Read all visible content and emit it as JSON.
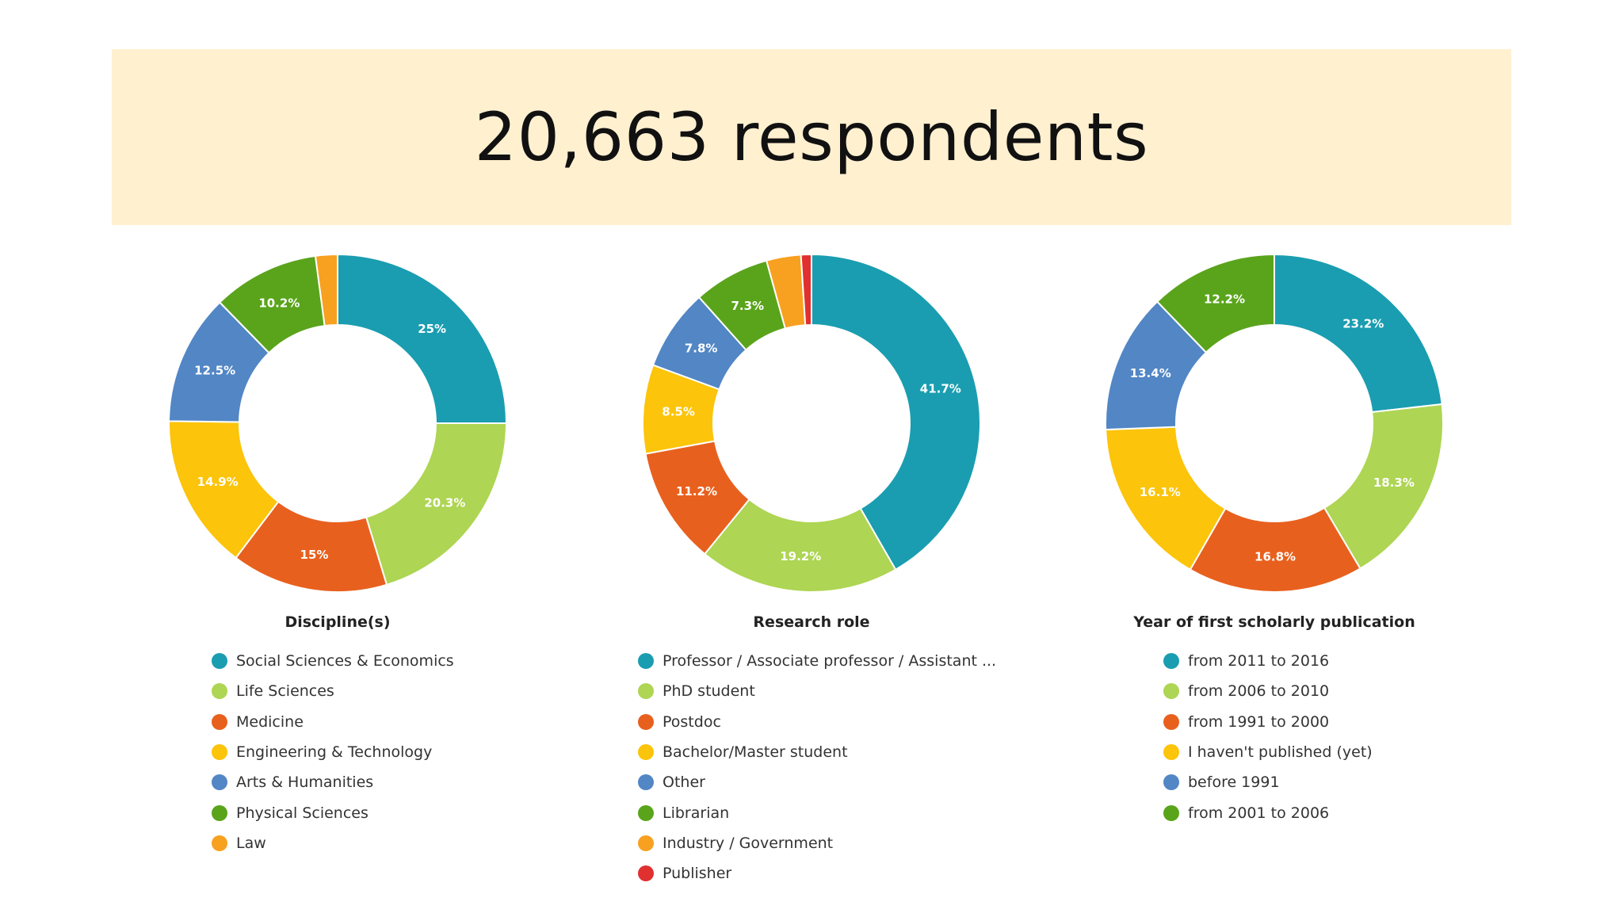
{
  "banner": {
    "title": "20,663 respondents"
  },
  "colors": {
    "banner_bg": "#fff0d0",
    "teal": "#1a9db0",
    "light_green": "#aed553",
    "orange_red": "#e8601e",
    "yellow": "#fcc40a",
    "blue": "#5286c5",
    "green": "#5aa41c",
    "orange": "#f8a020",
    "red": "#e03030"
  },
  "chart_data": [
    {
      "type": "pie",
      "title": "Discipline(s)",
      "donut": true,
      "slices": [
        {
          "label": "Social Sciences & Economics",
          "value": 25,
          "display": "25%",
          "color": "#1a9db0"
        },
        {
          "label": "Life Sciences",
          "value": 20.3,
          "display": "20.3%",
          "color": "#aed553"
        },
        {
          "label": "Medicine",
          "value": 15,
          "display": "15%",
          "color": "#e8601e"
        },
        {
          "label": "Engineering & Technology",
          "value": 14.9,
          "display": "14.9%",
          "color": "#fcc40a"
        },
        {
          "label": "Arts & Humanities",
          "value": 12.5,
          "display": "12.5%",
          "color": "#5286c5"
        },
        {
          "label": "Physical Sciences",
          "value": 10.2,
          "display": "10.2%",
          "color": "#5aa41c"
        },
        {
          "label": "Law",
          "value": 2.1,
          "display": "",
          "color": "#f8a020"
        }
      ]
    },
    {
      "type": "pie",
      "title": "Research role",
      "donut": true,
      "slices": [
        {
          "label": "Professor / Associate professor / Assistant ...",
          "value": 41.7,
          "display": "41.7%",
          "color": "#1a9db0"
        },
        {
          "label": "PhD student",
          "value": 19.2,
          "display": "19.2%",
          "color": "#aed553"
        },
        {
          "label": "Postdoc",
          "value": 11.2,
          "display": "11.2%",
          "color": "#e8601e"
        },
        {
          "label": "Bachelor/Master student",
          "value": 8.5,
          "display": "8.5%",
          "color": "#fcc40a"
        },
        {
          "label": "Other",
          "value": 7.8,
          "display": "7.8%",
          "color": "#5286c5"
        },
        {
          "label": "Librarian",
          "value": 7.3,
          "display": "7.3%",
          "color": "#5aa41c"
        },
        {
          "label": "Industry / Government",
          "value": 3.3,
          "display": "",
          "color": "#f8a020"
        },
        {
          "label": "Publisher",
          "value": 1.0,
          "display": "",
          "color": "#e03030"
        }
      ]
    },
    {
      "type": "pie",
      "title": "Year of first scholarly publication",
      "donut": true,
      "slices": [
        {
          "label": "from 2011 to 2016",
          "value": 23.2,
          "display": "23.2%",
          "color": "#1a9db0"
        },
        {
          "label": "from 2006 to 2010",
          "value": 18.3,
          "display": "18.3%",
          "color": "#aed553"
        },
        {
          "label": "from 1991 to 2000",
          "value": 16.8,
          "display": "16.8%",
          "color": "#e8601e"
        },
        {
          "label": "I haven't published (yet)",
          "value": 16.1,
          "display": "16.1%",
          "color": "#fcc40a"
        },
        {
          "label": "before 1991",
          "value": 13.4,
          "display": "13.4%",
          "color": "#5286c5"
        },
        {
          "label": "from 2001 to 2006",
          "value": 12.2,
          "display": "12.2%",
          "color": "#5aa41c"
        }
      ]
    }
  ]
}
